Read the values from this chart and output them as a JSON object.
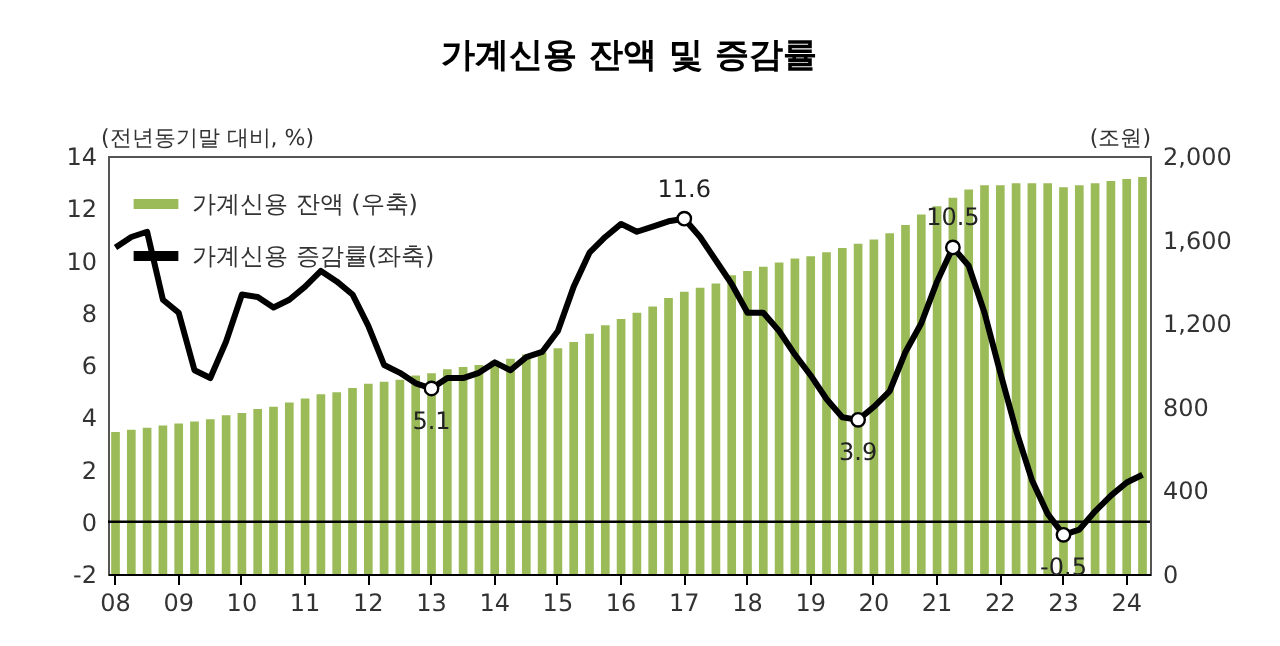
{
  "chart_data": {
    "type": "bar",
    "title": "가계신용 잔액 및 증감률",
    "ylabel": "(전년동기말 대비, %)",
    "y2label": "(조원)",
    "categories": [
      "08",
      null,
      null,
      null,
      "09",
      null,
      null,
      null,
      "10",
      null,
      null,
      null,
      "11",
      null,
      null,
      null,
      "12",
      null,
      null,
      null,
      "13",
      null,
      null,
      null,
      "14",
      null,
      null,
      null,
      "15",
      null,
      null,
      null,
      "16",
      null,
      null,
      null,
      "17",
      null,
      null,
      null,
      "18",
      null,
      null,
      null,
      "19",
      null,
      null,
      null,
      "20",
      null,
      null,
      null,
      "21",
      null,
      null,
      null,
      "22",
      null,
      null,
      null,
      "23",
      null,
      null,
      null,
      "24",
      null
    ],
    "series": [
      {
        "name": "가계신용 잔액 (우축)",
        "axis": "y2",
        "color": "#9bbb59",
        "values": [
          680,
          690,
          700,
          710,
          720,
          730,
          740,
          760,
          770,
          790,
          800,
          820,
          840,
          860,
          870,
          890,
          910,
          920,
          930,
          950,
          960,
          980,
          990,
          1000,
          1020,
          1030,
          1050,
          1060,
          1080,
          1110,
          1150,
          1190,
          1220,
          1250,
          1280,
          1320,
          1350,
          1370,
          1390,
          1430,
          1450,
          1470,
          1490,
          1510,
          1520,
          1540,
          1560,
          1580,
          1600,
          1630,
          1670,
          1720,
          1760,
          1800,
          1840,
          1860,
          1860,
          1870,
          1870,
          1870,
          1850,
          1860,
          1870,
          1880,
          1890,
          1900
        ]
      },
      {
        "name": "가계신용 증감률(좌축)",
        "type": "line",
        "color": "#000000",
        "values": [
          10.5,
          10.9,
          11.1,
          8.5,
          8.0,
          5.8,
          5.5,
          6.9,
          8.7,
          8.6,
          8.2,
          8.5,
          9.0,
          9.6,
          9.2,
          8.7,
          7.5,
          6.0,
          5.7,
          5.3,
          5.1,
          5.5,
          5.5,
          5.7,
          6.1,
          5.8,
          6.3,
          6.5,
          7.3,
          9.0,
          10.3,
          10.9,
          11.4,
          11.1,
          11.3,
          11.5,
          11.6,
          10.9,
          10.0,
          9.1,
          8.0,
          8.0,
          7.3,
          6.4,
          5.6,
          4.7,
          4.0,
          3.9,
          4.4,
          5.0,
          6.5,
          7.6,
          9.2,
          10.5,
          9.8,
          8.0,
          5.7,
          3.5,
          1.6,
          0.3,
          -0.5,
          -0.3,
          0.4,
          1.0,
          1.5,
          1.8
        ],
        "value_labels": [
          null,
          null,
          null,
          null,
          null,
          null,
          null,
          null,
          null,
          null,
          null,
          null,
          null,
          null,
          null,
          null,
          null,
          null,
          null,
          null,
          "5.1",
          null,
          null,
          null,
          null,
          null,
          null,
          null,
          null,
          null,
          null,
          null,
          null,
          null,
          null,
          null,
          "11.6",
          null,
          null,
          null,
          null,
          null,
          null,
          null,
          null,
          null,
          null,
          "3.9",
          null,
          null,
          null,
          null,
          null,
          "10.5",
          null,
          null,
          null,
          null,
          null,
          null,
          "-0.5",
          null,
          null,
          null,
          null,
          null
        ]
      }
    ],
    "ylim": [
      -2,
      14
    ],
    "yticks": [
      -2,
      0,
      2,
      4,
      6,
      8,
      10,
      12,
      14
    ],
    "y2lim": [
      0,
      2000
    ],
    "y2ticks": [
      0,
      {
        "value": 400,
        "label": "400"
      },
      {
        "value": 800,
        "label": "800"
      },
      {
        "value": 1200,
        "label": "1,200"
      },
      {
        "value": 1600,
        "label": "1,600"
      },
      {
        "value": 2000,
        "label": "2,000"
      }
    ],
    "ref_lines": [
      {
        "axis": "y",
        "value": 0,
        "color": "#000000"
      }
    ],
    "legend": "top left",
    "grid": false
  }
}
